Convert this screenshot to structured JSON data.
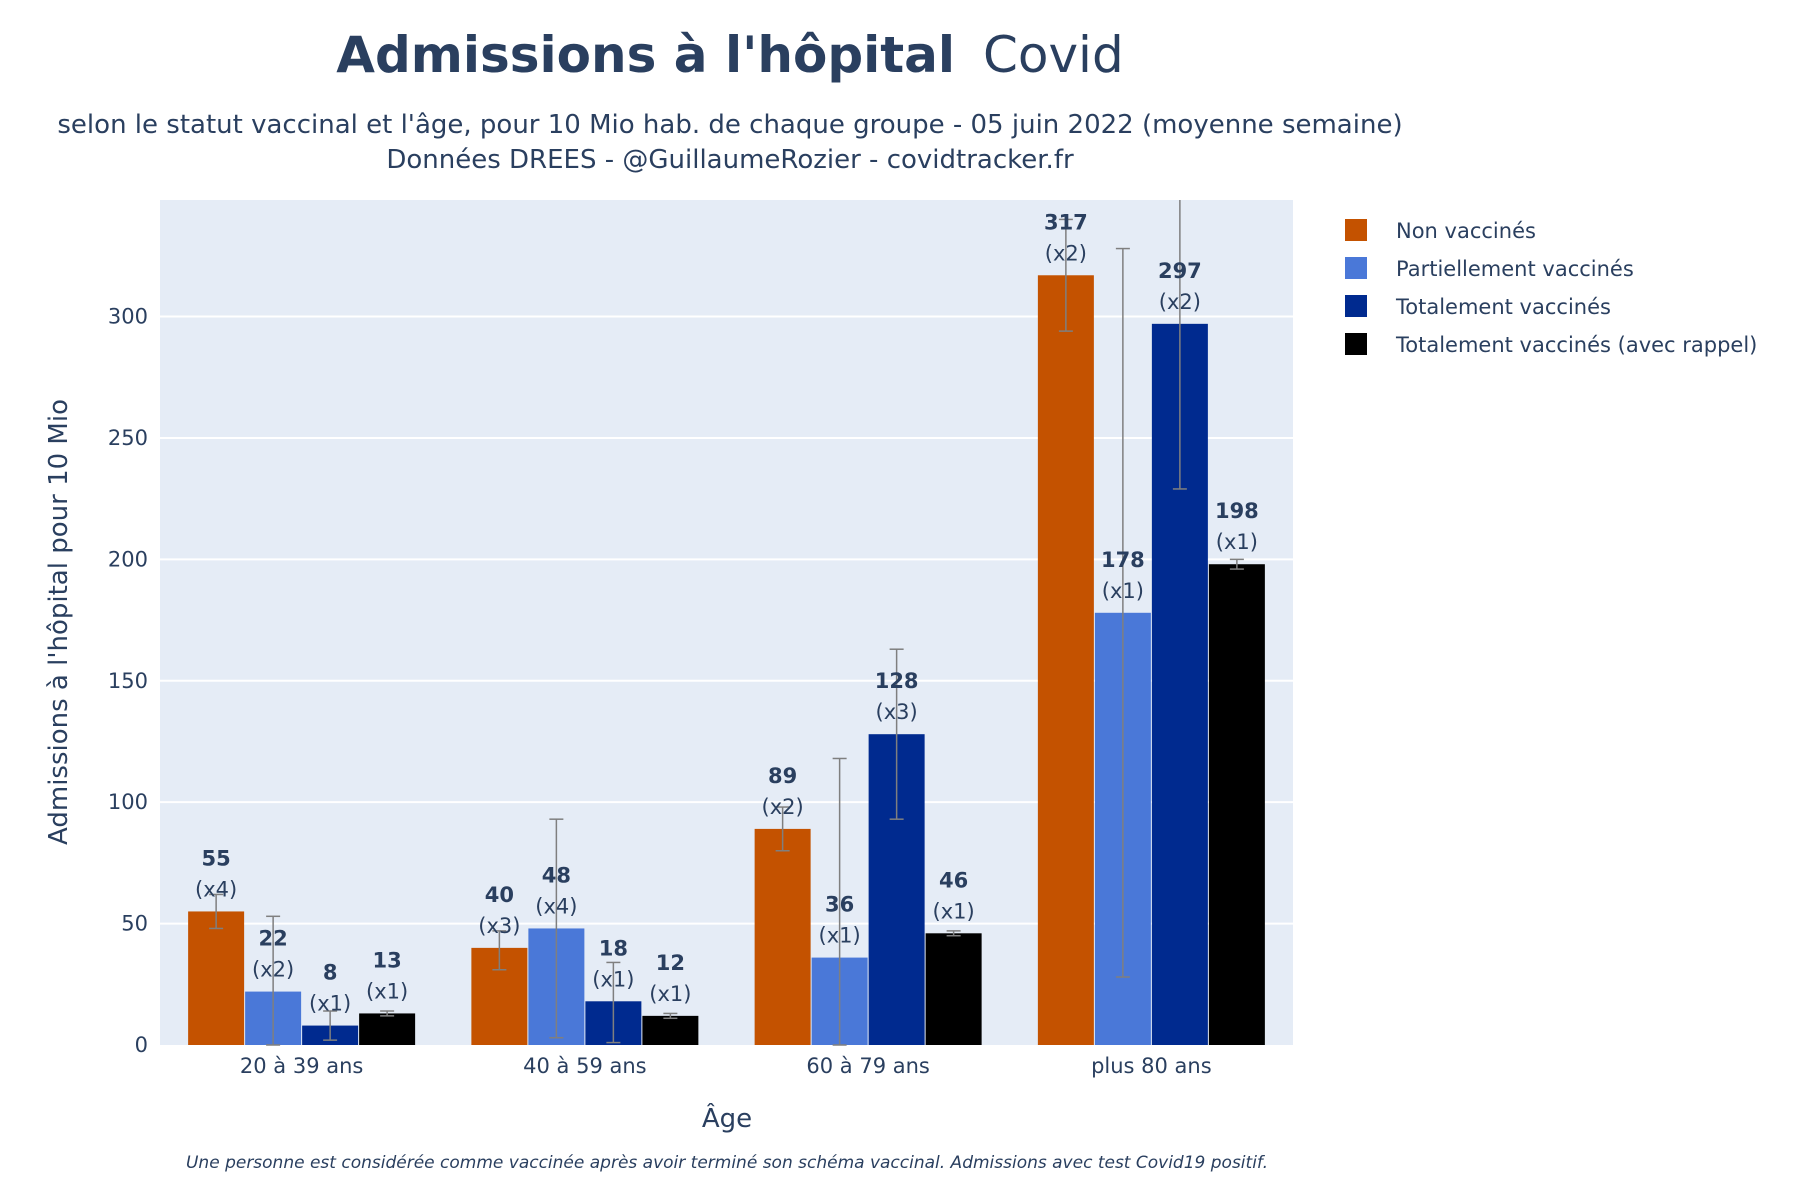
{
  "chart_data": {
    "type": "bar",
    "title_bold": "Admissions à l'hôpital",
    "title_regular": "Covid",
    "subtitle_line1": "selon le statut vaccinal et l'âge, pour 10 Mio hab. de chaque groupe - 05 juin 2022 (moyenne semaine)",
    "subtitle_line2": "Données DREES - @GuillaumeRozier - covidtracker.fr",
    "xlabel": "Âge",
    "ylabel": "Admissions à l'hôpital pour 10 Mio",
    "footnote": "Une personne est considérée comme vaccinée après avoir terminé son schéma vaccinal. Admissions avec test Covid19 positif.",
    "categories": [
      "20 à 39 ans",
      "40 à 59 ans",
      "60 à 79 ans",
      "plus 80 ans"
    ],
    "ylim": [
      0,
      348
    ],
    "yticks": [
      0,
      50,
      100,
      150,
      200,
      250,
      300
    ],
    "grid": true,
    "legend_position": "top-right",
    "series": [
      {
        "name": "Non vaccinés",
        "color": "#c45200",
        "values": [
          55,
          40,
          89,
          317
        ],
        "ratio_labels": [
          "(x4)",
          "(x3)",
          "(x2)",
          "(x2)"
        ],
        "error_low": [
          48,
          31,
          80,
          294
        ],
        "error_high": [
          62,
          47,
          98,
          340
        ]
      },
      {
        "name": "Partiellement vaccinés",
        "color": "#4a78d8",
        "values": [
          22,
          48,
          36,
          178
        ],
        "ratio_labels": [
          "(x2)",
          "(x4)",
          "(x1)",
          "(x1)"
        ],
        "error_low": [
          0,
          3,
          0,
          28
        ],
        "error_high": [
          53,
          93,
          118,
          328
        ]
      },
      {
        "name": "Totalement vaccinés",
        "color": "#002a8f",
        "values": [
          8,
          18,
          128,
          297
        ],
        "ratio_labels": [
          "(x1)",
          "(x1)",
          "(x3)",
          "(x2)"
        ],
        "error_low": [
          2,
          1,
          93,
          229
        ],
        "error_high": [
          14,
          34,
          163,
          365
        ]
      },
      {
        "name": "Totalement vaccinés (avec rappel)",
        "color": "#000000",
        "values": [
          13,
          12,
          46,
          198
        ],
        "ratio_labels": [
          "(x1)",
          "(x1)",
          "(x1)",
          "(x1)"
        ],
        "error_low": [
          12,
          11,
          45,
          196
        ],
        "error_high": [
          14,
          13,
          47,
          200
        ]
      }
    ]
  }
}
